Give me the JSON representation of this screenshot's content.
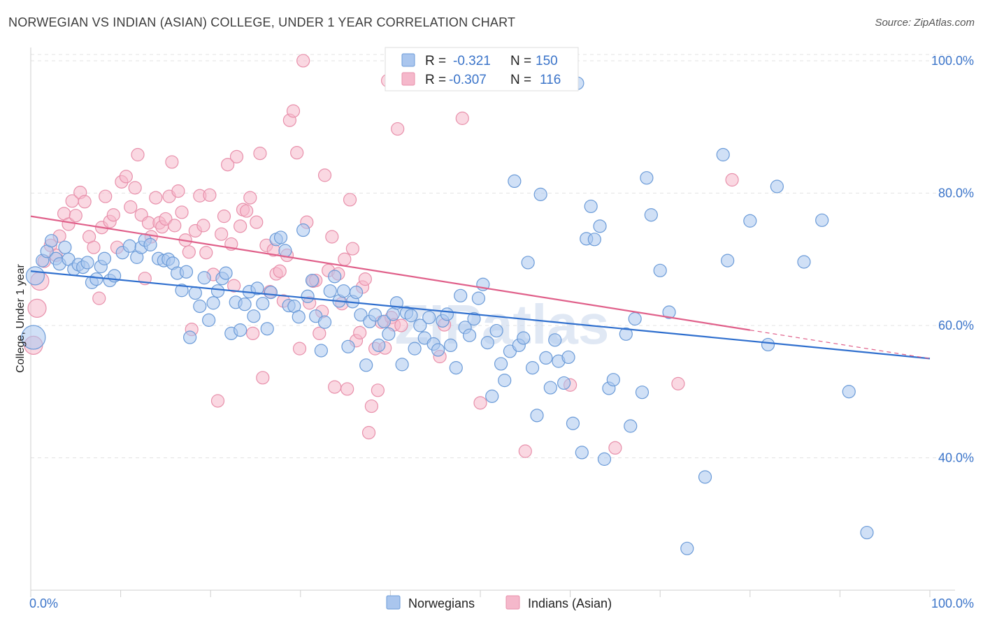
{
  "title": "NORWEGIAN VS INDIAN (ASIAN) COLLEGE, UNDER 1 YEAR CORRELATION CHART",
  "source": "Source: ZipAtlas.com",
  "watermark": "ZIPatlas",
  "colors": {
    "blue_fill": "#aac6ee",
    "blue_stroke": "#6b9bd8",
    "blue_line": "#2f6fce",
    "pink_fill": "#f5b8cb",
    "pink_stroke": "#e890ab",
    "pink_line": "#e0608a",
    "tick_text": "#3b74c9",
    "grid": "#e3e3e3"
  },
  "legend": {
    "r_label": "R =",
    "n_label": "N =",
    "rows": [
      {
        "r": "-0.321",
        "n": "150"
      },
      {
        "r": "-0.307",
        "n": "116"
      }
    ]
  },
  "chart_data": {
    "type": "scatter",
    "title": "NORWEGIAN VS INDIAN (ASIAN) COLLEGE, UNDER 1 YEAR CORRELATION CHART",
    "xlabel": "",
    "ylabel": "College, Under 1 year",
    "xlim": [
      0,
      100
    ],
    "ylim": [
      20,
      102
    ],
    "x_tick_labels": [
      "0.0%",
      "100.0%"
    ],
    "y_ticks": [
      40,
      60,
      80,
      100
    ],
    "y_tick_labels": [
      "40.0%",
      "60.0%",
      "80.0%",
      "100.0%"
    ],
    "grid": "horizontal dashed",
    "legend_placement": "bottom",
    "series": [
      {
        "name": "Norwegians",
        "r": -0.321,
        "n": 150,
        "trend": {
          "x0": 0,
          "y0": 68.2,
          "x1": 100,
          "y1": 55.0,
          "solid_to_x": 100
        },
        "points": [
          [
            0.3,
            58.2
          ],
          [
            0.5,
            67.5
          ],
          [
            1.3,
            69.8
          ],
          [
            1.8,
            71.2
          ],
          [
            2.3,
            72.8
          ],
          [
            2.8,
            70.1
          ],
          [
            3.2,
            69.3
          ],
          [
            3.8,
            71.8
          ],
          [
            4.2,
            70.0
          ],
          [
            4.8,
            68.5
          ],
          [
            5.3,
            69.2
          ],
          [
            5.8,
            68.8
          ],
          [
            6.3,
            69.5
          ],
          [
            6.8,
            66.5
          ],
          [
            7.3,
            67.0
          ],
          [
            7.8,
            68.9
          ],
          [
            8.2,
            70.1
          ],
          [
            8.8,
            66.8
          ],
          [
            9.3,
            67.5
          ],
          [
            10.2,
            71.0
          ],
          [
            11.0,
            72.0
          ],
          [
            11.8,
            70.3
          ],
          [
            12.3,
            71.8
          ],
          [
            12.7,
            72.9
          ],
          [
            13.3,
            72.2
          ],
          [
            14.2,
            70.1
          ],
          [
            14.8,
            69.8
          ],
          [
            15.3,
            70.0
          ],
          [
            15.8,
            69.4
          ],
          [
            16.3,
            67.9
          ],
          [
            16.8,
            65.3
          ],
          [
            17.3,
            68.1
          ],
          [
            17.7,
            58.2
          ],
          [
            18.3,
            64.9
          ],
          [
            18.8,
            62.9
          ],
          [
            19.3,
            67.2
          ],
          [
            19.8,
            60.8
          ],
          [
            20.3,
            63.4
          ],
          [
            20.8,
            65.2
          ],
          [
            21.3,
            67.1
          ],
          [
            21.7,
            67.9
          ],
          [
            22.3,
            58.8
          ],
          [
            22.8,
            63.5
          ],
          [
            23.3,
            59.3
          ],
          [
            23.8,
            63.2
          ],
          [
            24.3,
            65.1
          ],
          [
            24.8,
            61.4
          ],
          [
            25.2,
            65.6
          ],
          [
            25.8,
            63.3
          ],
          [
            26.3,
            59.5
          ],
          [
            26.7,
            65.0
          ],
          [
            27.3,
            73.0
          ],
          [
            27.8,
            73.3
          ],
          [
            28.3,
            71.3
          ],
          [
            28.7,
            63.0
          ],
          [
            29.3,
            62.9
          ],
          [
            29.8,
            61.3
          ],
          [
            30.3,
            74.4
          ],
          [
            30.8,
            64.4
          ],
          [
            31.3,
            66.8
          ],
          [
            31.7,
            61.4
          ],
          [
            32.3,
            56.2
          ],
          [
            32.7,
            60.5
          ],
          [
            33.3,
            65.2
          ],
          [
            33.8,
            67.4
          ],
          [
            34.3,
            63.7
          ],
          [
            34.8,
            65.2
          ],
          [
            35.3,
            56.8
          ],
          [
            35.8,
            63.6
          ],
          [
            36.2,
            65.0
          ],
          [
            36.7,
            61.6
          ],
          [
            37.3,
            54.0
          ],
          [
            37.7,
            60.6
          ],
          [
            38.3,
            61.6
          ],
          [
            38.7,
            57.0
          ],
          [
            39.3,
            60.6
          ],
          [
            39.8,
            58.7
          ],
          [
            40.3,
            61.7
          ],
          [
            40.7,
            63.4
          ],
          [
            41.3,
            54.1
          ],
          [
            41.8,
            61.9
          ],
          [
            42.3,
            61.5
          ],
          [
            42.7,
            56.5
          ],
          [
            43.3,
            60.0
          ],
          [
            43.8,
            58.1
          ],
          [
            44.3,
            61.2
          ],
          [
            44.8,
            57.2
          ],
          [
            45.3,
            56.3
          ],
          [
            45.8,
            60.7
          ],
          [
            46.3,
            61.7
          ],
          [
            46.7,
            57.0
          ],
          [
            47.3,
            53.6
          ],
          [
            47.8,
            64.5
          ],
          [
            48.3,
            59.7
          ],
          [
            48.8,
            58.5
          ],
          [
            49.3,
            61.0
          ],
          [
            49.8,
            64.1
          ],
          [
            50.3,
            66.2
          ],
          [
            50.8,
            57.4
          ],
          [
            51.3,
            49.3
          ],
          [
            51.8,
            59.2
          ],
          [
            52.3,
            54.2
          ],
          [
            52.7,
            51.7
          ],
          [
            53.3,
            56.1
          ],
          [
            53.8,
            81.8
          ],
          [
            54.3,
            57.0
          ],
          [
            54.8,
            58.1
          ],
          [
            55.3,
            69.5
          ],
          [
            55.8,
            53.6
          ],
          [
            56.3,
            46.4
          ],
          [
            56.7,
            79.8
          ],
          [
            57.3,
            55.1
          ],
          [
            57.8,
            50.6
          ],
          [
            58.3,
            57.8
          ],
          [
            58.7,
            54.6
          ],
          [
            59.3,
            51.3
          ],
          [
            59.8,
            55.2
          ],
          [
            60.3,
            45.2
          ],
          [
            60.8,
            96.6
          ],
          [
            61.3,
            40.8
          ],
          [
            61.8,
            73.1
          ],
          [
            62.3,
            78.0
          ],
          [
            62.7,
            73.0
          ],
          [
            63.3,
            75.0
          ],
          [
            63.8,
            39.8
          ],
          [
            64.3,
            50.5
          ],
          [
            64.8,
            51.8
          ],
          [
            66.2,
            58.7
          ],
          [
            66.7,
            44.8
          ],
          [
            67.2,
            61.0
          ],
          [
            68.0,
            49.9
          ],
          [
            68.5,
            82.3
          ],
          [
            69.0,
            76.7
          ],
          [
            70.0,
            68.3
          ],
          [
            71.0,
            62.0
          ],
          [
            73.0,
            26.3
          ],
          [
            75.0,
            37.1
          ],
          [
            77.0,
            85.8
          ],
          [
            77.5,
            69.8
          ],
          [
            80.0,
            75.8
          ],
          [
            82.0,
            57.1
          ],
          [
            83.0,
            81.0
          ],
          [
            86.0,
            69.6
          ],
          [
            88.0,
            75.9
          ],
          [
            91.0,
            50.0
          ],
          [
            93.0,
            28.7
          ]
        ]
      },
      {
        "name": "Indians (Asian)",
        "r": -0.307,
        "n": 116,
        "trend": {
          "x0": 0,
          "y0": 76.5,
          "x1": 100,
          "y1": 55.0,
          "solid_to_x": 80
        },
        "points": [
          [
            0.3,
            57.0
          ],
          [
            0.7,
            62.6
          ],
          [
            1.0,
            66.7
          ],
          [
            1.5,
            69.7
          ],
          [
            2.2,
            72.1
          ],
          [
            2.8,
            70.6
          ],
          [
            3.2,
            73.5
          ],
          [
            3.7,
            76.9
          ],
          [
            4.2,
            75.3
          ],
          [
            4.6,
            78.8
          ],
          [
            5.0,
            76.6
          ],
          [
            5.5,
            80.1
          ],
          [
            6.0,
            78.7
          ],
          [
            6.5,
            73.4
          ],
          [
            7.0,
            71.8
          ],
          [
            7.6,
            64.1
          ],
          [
            7.9,
            74.8
          ],
          [
            8.3,
            79.5
          ],
          [
            8.8,
            75.7
          ],
          [
            9.2,
            76.7
          ],
          [
            9.6,
            71.8
          ],
          [
            10.1,
            81.7
          ],
          [
            10.6,
            82.5
          ],
          [
            11.1,
            77.9
          ],
          [
            11.6,
            80.8
          ],
          [
            11.9,
            85.8
          ],
          [
            12.3,
            76.7
          ],
          [
            12.7,
            67.1
          ],
          [
            13.1,
            75.5
          ],
          [
            13.4,
            73.4
          ],
          [
            13.9,
            79.3
          ],
          [
            14.3,
            75.5
          ],
          [
            14.6,
            74.9
          ],
          [
            15.0,
            76.1
          ],
          [
            15.4,
            79.5
          ],
          [
            15.7,
            84.7
          ],
          [
            16.0,
            75.1
          ],
          [
            16.4,
            80.3
          ],
          [
            16.8,
            77.1
          ],
          [
            17.2,
            72.9
          ],
          [
            17.6,
            71.1
          ],
          [
            17.9,
            59.4
          ],
          [
            18.3,
            74.3
          ],
          [
            18.8,
            79.6
          ],
          [
            19.2,
            75.1
          ],
          [
            19.5,
            71.0
          ],
          [
            19.9,
            79.7
          ],
          [
            20.3,
            67.7
          ],
          [
            20.8,
            48.6
          ],
          [
            21.2,
            73.8
          ],
          [
            21.5,
            76.5
          ],
          [
            21.9,
            84.3
          ],
          [
            22.3,
            72.3
          ],
          [
            22.6,
            66.0
          ],
          [
            22.9,
            85.5
          ],
          [
            23.3,
            75.0
          ],
          [
            23.6,
            77.5
          ],
          [
            24.0,
            77.3
          ],
          [
            24.4,
            79.3
          ],
          [
            24.7,
            58.8
          ],
          [
            25.1,
            75.6
          ],
          [
            25.5,
            86.0
          ],
          [
            25.8,
            52.1
          ],
          [
            26.2,
            72.1
          ],
          [
            26.6,
            65.1
          ],
          [
            27.0,
            71.4
          ],
          [
            27.3,
            67.8
          ],
          [
            27.7,
            68.2
          ],
          [
            28.1,
            63.7
          ],
          [
            28.5,
            70.6
          ],
          [
            28.8,
            91.0
          ],
          [
            29.2,
            92.4
          ],
          [
            29.6,
            86.1
          ],
          [
            29.9,
            56.5
          ],
          [
            30.3,
            100.0
          ],
          [
            30.7,
            75.6
          ],
          [
            31.0,
            63.4
          ],
          [
            31.4,
            66.7
          ],
          [
            31.7,
            66.8
          ],
          [
            32.1,
            58.8
          ],
          [
            32.4,
            62.1
          ],
          [
            32.7,
            82.7
          ],
          [
            33.1,
            68.3
          ],
          [
            33.5,
            73.4
          ],
          [
            33.8,
            50.7
          ],
          [
            34.2,
            67.8
          ],
          [
            34.6,
            63.3
          ],
          [
            34.9,
            70.0
          ],
          [
            35.2,
            50.4
          ],
          [
            35.5,
            79.0
          ],
          [
            35.8,
            71.6
          ],
          [
            36.2,
            57.7
          ],
          [
            36.6,
            58.9
          ],
          [
            36.9,
            65.8
          ],
          [
            37.2,
            67.0
          ],
          [
            37.6,
            43.8
          ],
          [
            37.9,
            47.8
          ],
          [
            38.3,
            56.5
          ],
          [
            38.6,
            50.2
          ],
          [
            39.0,
            60.5
          ],
          [
            39.4,
            56.6
          ],
          [
            39.7,
            97.0
          ],
          [
            40.1,
            61.2
          ],
          [
            40.4,
            60.1
          ],
          [
            40.8,
            89.7
          ],
          [
            41.2,
            60.0
          ],
          [
            45.5,
            55.3
          ],
          [
            46.0,
            60.1
          ],
          [
            48.0,
            91.3
          ],
          [
            50.0,
            48.3
          ],
          [
            55.0,
            41.0
          ],
          [
            60.0,
            51.0
          ],
          [
            65.0,
            41.5
          ],
          [
            72.0,
            51.2
          ],
          [
            78.0,
            82.0
          ]
        ]
      }
    ]
  },
  "bottom_legend": [
    {
      "label": "Norwegians"
    },
    {
      "label": "Indians (Asian)"
    }
  ]
}
